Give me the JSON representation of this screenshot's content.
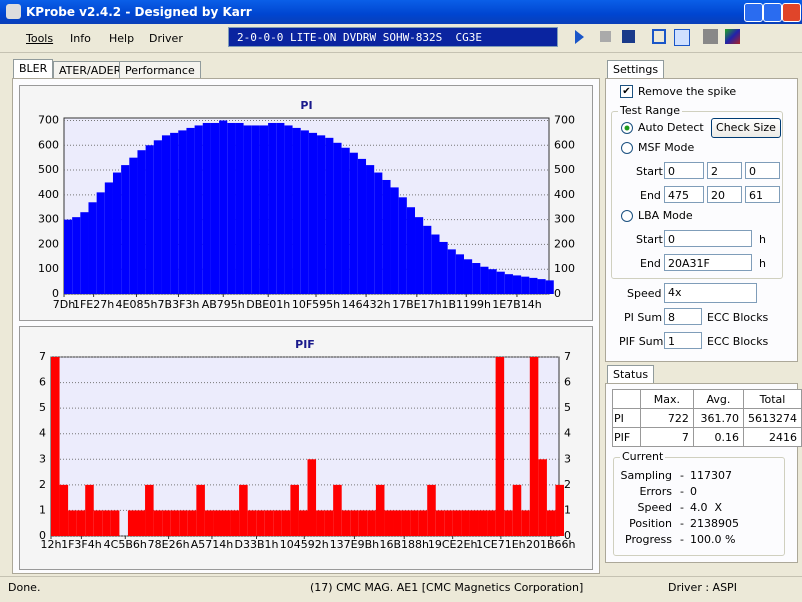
{
  "title_bar": {
    "title": "KProbe v2.4.2 - Designed by Karr"
  },
  "menu": [
    "Tools",
    "Info",
    "Help",
    "Driver"
  ],
  "drive": "2-0-0-0 LITE-ON DVDRW SOHW-832S  CG3E",
  "tabs": [
    "BLER",
    "ATER/ADER",
    "Performance"
  ],
  "chart_data": [
    {
      "type": "bar",
      "title": "PI",
      "color": "#0000ff",
      "grid": true,
      "x": [
        0,
        36000,
        72000,
        108000,
        144000,
        180000,
        216000,
        252000,
        288000,
        324000,
        360000,
        396000,
        432000,
        468000,
        504000,
        540000,
        576000,
        612000,
        648000,
        684000,
        720000,
        756000,
        792000,
        828000,
        864000,
        900000,
        936000,
        972000,
        1008000,
        1044000,
        1080000,
        1116000,
        1152000,
        1188000,
        1224000,
        1260000,
        1296000,
        1332000,
        1368000,
        1404000,
        1440000,
        1476000,
        1512000,
        1548000,
        1584000,
        1620000,
        1656000,
        1692000,
        1728000,
        1764000,
        1800000,
        1836000,
        1872000,
        1908000,
        1944000,
        1980000,
        2016000,
        2052000,
        2088000,
        2124000
      ],
      "values": [
        300,
        310,
        330,
        370,
        410,
        450,
        490,
        520,
        550,
        580,
        600,
        620,
        640,
        650,
        660,
        670,
        680,
        690,
        690,
        700,
        690,
        690,
        680,
        680,
        680,
        690,
        690,
        680,
        670,
        660,
        650,
        640,
        630,
        610,
        590,
        570,
        545,
        520,
        490,
        460,
        430,
        390,
        350,
        310,
        275,
        240,
        210,
        180,
        160,
        140,
        125,
        110,
        100,
        90,
        80,
        75,
        70,
        65,
        60,
        55
      ],
      "xlim": [
        0,
        2138911
      ],
      "xticks": [
        {
          "value": 125,
          "label": "7Dh"
        },
        {
          "value": 130599,
          "label": "1FE27h"
        },
        {
          "value": 319621,
          "label": "4E085h"
        },
        {
          "value": 504819,
          "label": "7B3F3h"
        },
        {
          "value": 702357,
          "label": "AB795h"
        },
        {
          "value": 900609,
          "label": "DBE01h"
        },
        {
          "value": 1111445,
          "label": "10F595h"
        },
        {
          "value": 1332274,
          "label": "146432h"
        },
        {
          "value": 1555991,
          "label": "17BE17h"
        },
        {
          "value": 1773977,
          "label": "1B1199h"
        },
        {
          "value": 1997588,
          "label": "1E7B14h"
        }
      ],
      "ylim": [
        0,
        710
      ],
      "yticks": [
        0,
        100,
        200,
        300,
        400,
        500,
        600,
        700
      ]
    },
    {
      "type": "bar",
      "title": "PIF",
      "color": "#ff0000",
      "grid": true,
      "x": [
        0,
        36000,
        72000,
        108000,
        144000,
        180000,
        216000,
        252000,
        288000,
        324000,
        360000,
        396000,
        432000,
        468000,
        504000,
        540000,
        576000,
        612000,
        648000,
        684000,
        720000,
        756000,
        792000,
        828000,
        864000,
        900000,
        936000,
        972000,
        1008000,
        1044000,
        1080000,
        1116000,
        1152000,
        1188000,
        1224000,
        1260000,
        1296000,
        1332000,
        1368000,
        1404000,
        1440000,
        1476000,
        1512000,
        1548000,
        1584000,
        1620000,
        1656000,
        1692000,
        1728000,
        1764000,
        1800000,
        1836000,
        1872000,
        1908000,
        1944000,
        1980000,
        2016000,
        2052000,
        2088000,
        2124000
      ],
      "values": [
        7,
        2,
        1,
        1,
        2,
        1,
        1,
        1,
        0,
        1,
        1,
        2,
        1,
        1,
        1,
        1,
        1,
        2,
        1,
        1,
        1,
        1,
        2,
        1,
        1,
        1,
        1,
        1,
        2,
        1,
        3,
        1,
        1,
        2,
        1,
        1,
        1,
        1,
        2,
        1,
        1,
        1,
        1,
        1,
        2,
        1,
        1,
        1,
        1,
        1,
        1,
        1,
        7,
        1,
        2,
        1,
        7,
        3,
        1,
        2
      ],
      "xlim": [
        0,
        2138911
      ],
      "xticks": [
        {
          "value": 18,
          "label": "12h"
        },
        {
          "value": 127988,
          "label": "1F3F4h"
        },
        {
          "value": 312758,
          "label": "4C5B6h"
        },
        {
          "value": 495142,
          "label": "78E26h"
        },
        {
          "value": 677652,
          "label": "A5714h"
        },
        {
          "value": 865201,
          "label": "D33B1h"
        },
        {
          "value": 1066386,
          "label": "104592h"
        },
        {
          "value": 1277595,
          "label": "137E9Bh"
        },
        {
          "value": 1487240,
          "label": "16B188h"
        },
        {
          "value": 1691182,
          "label": "19CE2Eh"
        },
        {
          "value": 1894174,
          "label": "1CE71Eh"
        },
        {
          "value": 2104166,
          "label": "201B66h"
        }
      ],
      "ylim": [
        0,
        7
      ],
      "yticks": [
        0,
        1,
        2,
        3,
        4,
        5,
        6,
        7
      ]
    }
  ],
  "settings": {
    "tab": "Settings",
    "remove_spike": "Remove the spike",
    "test_range": "Test Range",
    "auto_detect": "Auto Detect",
    "check_size": "Check Size",
    "msf_mode": "MSF Mode",
    "start_label": "Start",
    "end_label": "End",
    "msf_start": [
      "0",
      "2",
      "0"
    ],
    "msf_end": [
      "475",
      "20",
      "61"
    ],
    "lba_mode": "LBA Mode",
    "lba_start": "0",
    "lba_end": "20A31F",
    "h": "h",
    "speed_label": "Speed",
    "speed": "4x",
    "pi_sum_label": "PI Sum",
    "pi_sum": "8",
    "pif_sum_label": "PIF Sum",
    "pif_sum": "1",
    "ecc_blocks": "ECC Blocks"
  },
  "status": {
    "tab": "Status",
    "headers": [
      "Max.",
      "Avg.",
      "Total"
    ],
    "rows": [
      [
        "PI",
        "722",
        "361.70",
        "5613274"
      ],
      [
        "PIF",
        "7",
        "0.16",
        "2416"
      ]
    ]
  },
  "current": {
    "title": "Current",
    "separator": "-",
    "rows": [
      [
        "Sampling",
        "117307"
      ],
      [
        "Errors",
        "0"
      ],
      [
        "Speed",
        "4.0  X"
      ],
      [
        "Position",
        "2138905"
      ],
      [
        "Progress",
        "100.0 %"
      ]
    ]
  },
  "status_bar": [
    "Done.",
    "(17) CMC MAG. AE1 [CMC Magnetics Corporation]",
    "Driver : ASPI"
  ]
}
